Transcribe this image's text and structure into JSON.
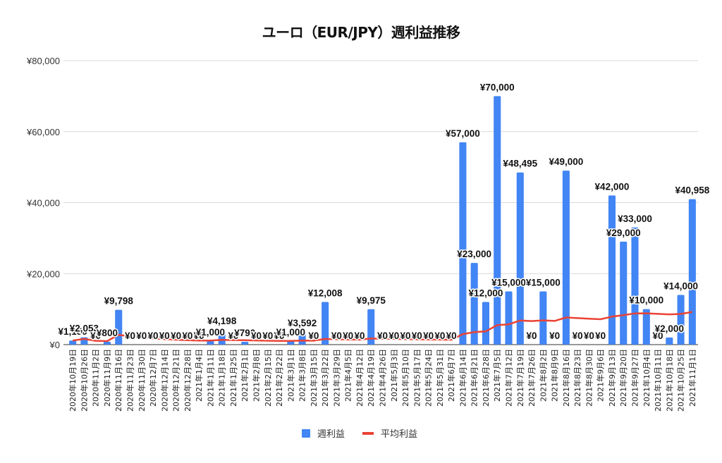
{
  "chart_data": {
    "type": "bar",
    "title": "ユーロ（EUR/JPY）週利益推移",
    "xlabel": "",
    "ylabel": "",
    "ylim": [
      0,
      80000
    ],
    "yticks": [
      0,
      20000,
      40000,
      60000,
      80000
    ],
    "ytick_labels": [
      "¥0",
      "¥20,000",
      "¥40,000",
      "¥60,000",
      "¥80,000"
    ],
    "grid": true,
    "legend_position": "bottom",
    "categories": [
      "2020年10月19日",
      "2020年10月26日",
      "2020年11月2日",
      "2020年11月9日",
      "2020年11月16日",
      "2020年11月23日",
      "2020年11月30日",
      "2020年12月7日",
      "2020年12月14日",
      "2020年12月21日",
      "2020年12月28日",
      "2021年1月4日",
      "2021年1月11日",
      "2021年1月18日",
      "2021年1月25日",
      "2021年2月1日",
      "2021年2月8日",
      "2021年2月15日",
      "2021年2月22日",
      "2021年3月1日",
      "2021年3月8日",
      "2021年3月15日",
      "2021年3月22日",
      "2021年3月29日",
      "2021年4月5日",
      "2021年4月12日",
      "2021年4月19日",
      "2021年4月26日",
      "2021年5月3日",
      "2021年5月10日",
      "2021年5月17日",
      "2021年5月24日",
      "2021年5月31日",
      "2021年6月7日",
      "2021年6月14日",
      "2021年6月21日",
      "2021年6月28日",
      "2021年7月5日",
      "2021年7月12日",
      "2021年7月19日",
      "2021年7月26日",
      "2021年8月2日",
      "2021年8月9日",
      "2021年8月16日",
      "2021年8月23日",
      "2021年8月30日",
      "2021年9月6日",
      "2021年9月13日",
      "2021年9月20日",
      "2021年9月27日",
      "2021年10月4日",
      "2021年10月11日",
      "2021年10月18日",
      "2021年10月25日",
      "2021年11月1日"
    ],
    "series": [
      {
        "name": "週利益",
        "type": "bar",
        "color": "#4285f4",
        "values": [
          1150,
          2053,
          0,
          800,
          9798,
          0,
          0,
          0,
          0,
          0,
          0,
          0,
          1000,
          4198,
          0,
          790,
          0,
          0,
          0,
          1000,
          3592,
          0,
          12008,
          0,
          0,
          0,
          9975,
          0,
          0,
          0,
          0,
          0,
          0,
          0,
          57000,
          23000,
          12000,
          70000,
          15000,
          48495,
          0,
          15000,
          0,
          49000,
          0,
          0,
          0,
          42000,
          29000,
          33000,
          10000,
          0,
          2000,
          14000,
          40958
        ],
        "labels": [
          "¥1,150",
          "¥2,053",
          "¥0",
          "¥800",
          "¥9,798",
          "¥0",
          "¥0",
          "¥0",
          "¥0",
          "¥0",
          "¥0",
          "¥0",
          "¥1,000",
          "¥4,198",
          "¥0",
          "¥790",
          "¥0",
          "¥0",
          "¥0",
          "¥1,000",
          "¥3,592",
          "¥0",
          "¥12,008",
          "¥0",
          "¥0",
          "¥0",
          "¥9,975",
          "¥0",
          "¥0",
          "¥0",
          "¥0",
          "¥0",
          "¥0",
          "¥0",
          "¥57,000",
          "¥23,000",
          "¥12,000",
          "¥70,000",
          "¥15,000",
          "¥48,495",
          "¥0",
          "¥15,000",
          "¥0",
          "¥49,000",
          "¥0",
          "¥0",
          "¥0",
          "¥42,000",
          "¥29,000",
          "¥33,000",
          "¥10,000",
          "¥0",
          "¥2,000",
          "¥14,000",
          "¥40,958"
        ]
      },
      {
        "name": "平均利益",
        "type": "line",
        "color": "#ea4335",
        "values": [
          1150,
          1602,
          1068,
          1001,
          2760,
          2300,
          1972,
          1725,
          1533,
          1380,
          1255,
          1150,
          1139,
          1357,
          1267,
          1237,
          1164,
          1099,
          1042,
          1039,
          1161,
          1108,
          1582,
          1516,
          1456,
          1400,
          1717,
          1656,
          1599,
          1545,
          1496,
          1449,
          1405,
          1364,
          2953,
          3510,
          3740,
          5483,
          5727,
          6796,
          6631,
          6830,
          6671,
          7633,
          7464,
          7301,
          7146,
          7872,
          8303,
          8797,
          8821,
          8651,
          8526,
          8627,
          9215
        ]
      }
    ]
  },
  "legend": {
    "items": [
      {
        "label": "週利益",
        "color": "#4285f4",
        "shape": "square"
      },
      {
        "label": "平均利益",
        "color": "#ea4335",
        "shape": "line"
      }
    ]
  }
}
